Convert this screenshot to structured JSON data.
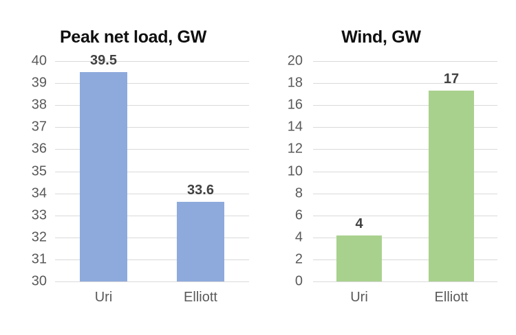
{
  "page": {
    "background_color": "#ffffff"
  },
  "styles": {
    "grid_color": "#d9d9d9",
    "tick_label_color": "#595959",
    "category_label_color": "#595959",
    "data_label_color": "#404040",
    "title_color": "#0f0f0f"
  },
  "chart_data": [
    {
      "type": "bar",
      "title": "Peak net load, GW",
      "categories": [
        "Uri",
        "Elliott"
      ],
      "values": [
        39.5,
        33.6
      ],
      "data_labels": [
        "39.5",
        "33.6"
      ],
      "bar_color": "#8eaadc",
      "ylim": [
        30,
        40
      ],
      "ytick_step": 1,
      "xlabel": "",
      "ylabel": "",
      "grid": true,
      "legend_position": "none"
    },
    {
      "type": "bar",
      "title": "Wind, GW",
      "categories": [
        "Uri",
        "Elliott"
      ],
      "values": [
        4.2,
        17.3
      ],
      "data_labels": [
        "4",
        "17"
      ],
      "bar_color": "#a9d18e",
      "ylim": [
        0,
        20
      ],
      "ytick_step": 2,
      "xlabel": "",
      "ylabel": "",
      "grid": true,
      "legend_position": "none"
    }
  ]
}
